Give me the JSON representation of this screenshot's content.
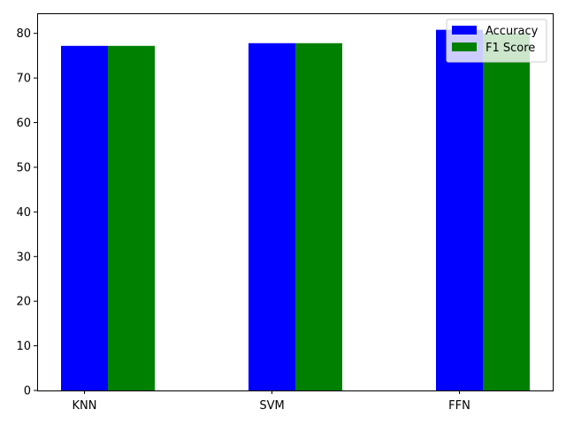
{
  "chart_data": {
    "type": "bar",
    "categories": [
      "KNN",
      "SVM",
      "FFN"
    ],
    "series": [
      {
        "name": "Accuracy",
        "color": "#0000ff",
        "values": [
          77.2,
          77.8,
          80.8
        ]
      },
      {
        "name": "F1 Score",
        "color": "#008000",
        "values": [
          77.2,
          77.8,
          80.0
        ]
      }
    ],
    "title": "",
    "xlabel": "",
    "ylabel": "",
    "ylim": [
      0,
      84.5
    ],
    "yticks": [
      0,
      10,
      20,
      30,
      40,
      50,
      60,
      70,
      80
    ],
    "grid": false,
    "legend_position": "top-right"
  }
}
